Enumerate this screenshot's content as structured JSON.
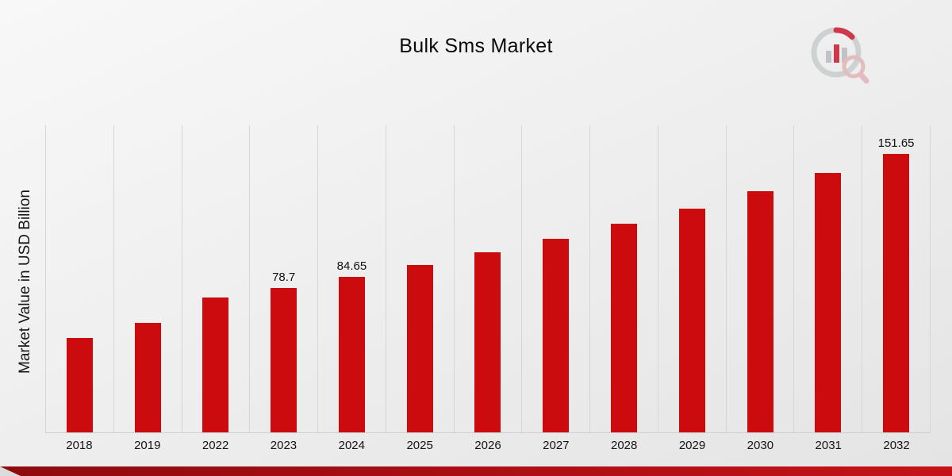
{
  "chart_data": {
    "type": "bar",
    "title": "Bulk Sms Market",
    "xlabel": "",
    "ylabel": "Market Value in USD Billion",
    "categories": [
      "2018",
      "2019",
      "2022",
      "2023",
      "2024",
      "2025",
      "2026",
      "2027",
      "2028",
      "2029",
      "2030",
      "2031",
      "2032"
    ],
    "values": [
      51.3,
      59.5,
      73.2,
      78.7,
      84.65,
      91.05,
      97.93,
      105.34,
      113.31,
      121.88,
      131.1,
      141.01,
      151.65
    ],
    "data_labels": [
      null,
      null,
      null,
      "78.7",
      "84.65",
      null,
      null,
      null,
      null,
      null,
      null,
      null,
      "151.65"
    ],
    "ylim": [
      0,
      167
    ],
    "grid": "vertical-only",
    "legend": "none",
    "bar_color": "#cc0b0e"
  },
  "colors": {
    "accent_red": "#cc0b0e",
    "bottom_bar_dark": "#8e0b0e",
    "bottom_bar_light": "#c51218",
    "gridline": "#d6d6d6",
    "background": "#ededed",
    "text": "#111111"
  },
  "icons": {
    "brand_logo": "bar-chart-magnifier-icon"
  }
}
